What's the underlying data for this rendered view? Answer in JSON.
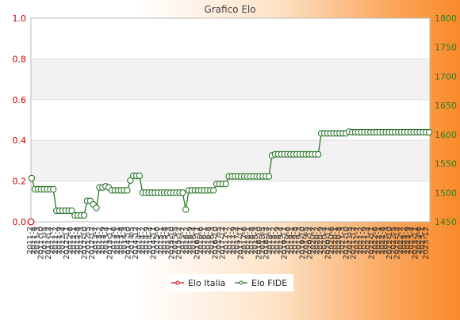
{
  "chart_data": {
    "type": "line",
    "title": "Grafico Elo",
    "xlabel": "",
    "ylabel_left": "",
    "ylabel_right": "",
    "left_axis": {
      "min": 0,
      "max": 1,
      "ticks": [
        "0.0",
        "0.2",
        "0.4",
        "0.6",
        "0.8",
        "1.0"
      ]
    },
    "right_axis": {
      "min": 1450,
      "max": 1800,
      "ticks": [
        "1450",
        "1500",
        "1550",
        "1600",
        "1650",
        "1700",
        "1750",
        "1800"
      ]
    },
    "grid": "horizontal bands",
    "legend_position": "bottom-center",
    "colors": {
      "left_axis": "#cc0000",
      "right_axis": "#2e7d1a",
      "elo_italia": "#cc0000",
      "elo_fide": "#1a6b1a",
      "band": "#f2f2f2"
    },
    "x_labels_note": "rotated date labels in YYYY-MM format (mostly illegible)",
    "x_start_label": "2011-2",
    "x_end_label": "2023-12",
    "series": [
      {
        "name": "Elo Italia",
        "axis": "left",
        "values": [
          0
        ]
      },
      {
        "name": "Elo FIDE",
        "axis": "right",
        "values": [
          1525,
          1506,
          1506,
          1506,
          1506,
          1506,
          1506,
          1506,
          1469,
          1469,
          1469,
          1469,
          1469,
          1469,
          1461,
          1461,
          1461,
          1461,
          1486,
          1486,
          1480,
          1474,
          1509,
          1509,
          1511,
          1509,
          1504,
          1504,
          1504,
          1504,
          1504,
          1504,
          1521,
          1529,
          1529,
          1529,
          1500,
          1500,
          1500,
          1500,
          1500,
          1500,
          1500,
          1500,
          1500,
          1500,
          1500,
          1500,
          1500,
          1500,
          1471,
          1504,
          1504,
          1504,
          1504,
          1504,
          1504,
          1504,
          1504,
          1504,
          1515,
          1515,
          1515,
          1515,
          1528,
          1528,
          1528,
          1528,
          1528,
          1528,
          1528,
          1528,
          1528,
          1528,
          1528,
          1528,
          1528,
          1528,
          1564,
          1566,
          1566,
          1566,
          1566,
          1566,
          1566,
          1566,
          1566,
          1566,
          1566,
          1566,
          1566,
          1566,
          1566,
          1566,
          1602,
          1602,
          1602,
          1602,
          1602,
          1602,
          1602,
          1602,
          1602,
          1605,
          1604,
          1604,
          1604,
          1604,
          1604,
          1604,
          1604,
          1604,
          1604,
          1604,
          1604,
          1604,
          1604,
          1604,
          1604,
          1604,
          1604,
          1604,
          1604,
          1604,
          1604,
          1604,
          1604,
          1604,
          1604,
          1604
        ]
      }
    ]
  }
}
